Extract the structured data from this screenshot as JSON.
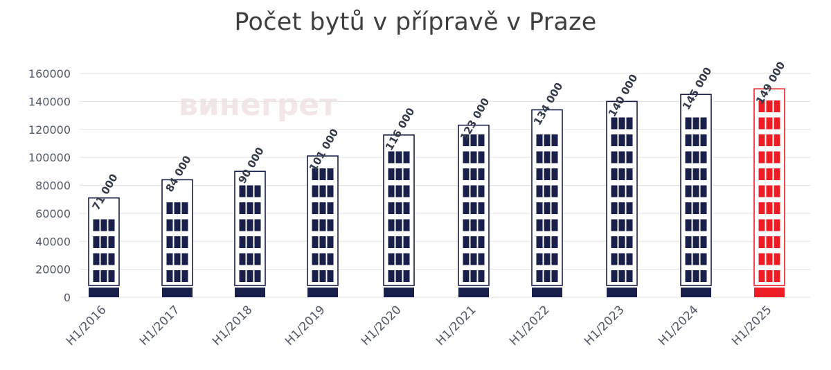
{
  "chart_data": {
    "type": "bar",
    "title": "Počet bytů v přípravě v Praze",
    "categories": [
      "H1/2016",
      "H1/2017",
      "H1/2018",
      "H1/2019",
      "H1/2020",
      "H1/2021",
      "H1/2022",
      "H1/2023",
      "H1/2024",
      "H1/2025"
    ],
    "values": [
      71000,
      84000,
      90000,
      101000,
      116000,
      123000,
      134000,
      140000,
      145000,
      149000
    ],
    "data_labels": [
      "71 000",
      "84 000",
      "90 000",
      "101 000",
      "116 000",
      "123 000",
      "134 000",
      "140 000",
      "145 000",
      "149 000"
    ],
    "yticks": [
      0,
      20000,
      40000,
      60000,
      80000,
      100000,
      120000,
      140000,
      160000
    ],
    "ytick_labels": [
      "0",
      "20000",
      "40000",
      "60000",
      "80000",
      "100000",
      "120000",
      "140000",
      "160000"
    ],
    "ylim": [
      0,
      160000
    ],
    "grid": true,
    "legend": "none",
    "bar_style": "building",
    "highlight_index": 9,
    "colors": {
      "bar": "#181f4a",
      "highlight": "#ee1c25",
      "grid": "#e2e2e2",
      "text": "#505767",
      "title": "#3f3f3f"
    },
    "watermark": "винегрет"
  }
}
